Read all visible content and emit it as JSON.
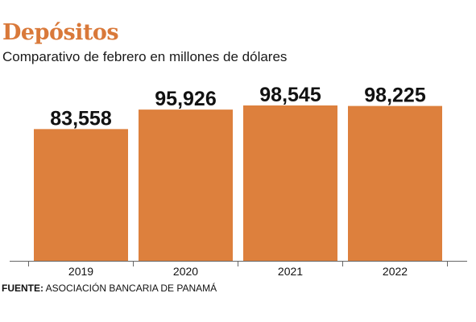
{
  "title": "Depósitos",
  "subtitle": "Comparativo de febrero en millones de dólares",
  "source": {
    "label": "FUENTE:",
    "text": "ASOCIACIÓN BANCARIA DE PANAMÁ"
  },
  "colors": {
    "title": "#d9793a",
    "bar": "#dd803d",
    "text": "#111111",
    "axis": "#666666"
  },
  "chart_data": {
    "type": "bar",
    "categories": [
      "2019",
      "2020",
      "2021",
      "2022"
    ],
    "values": [
      83558,
      95926,
      98545,
      98225
    ],
    "value_labels": [
      "83,558",
      "95,926",
      "98,545",
      "98,225"
    ],
    "title": "Depósitos",
    "subtitle": "Comparativo de febrero en millones de dólares",
    "xlabel": "",
    "ylabel": "",
    "ylim": [
      0,
      98545
    ],
    "grid": false,
    "legend": "none"
  }
}
